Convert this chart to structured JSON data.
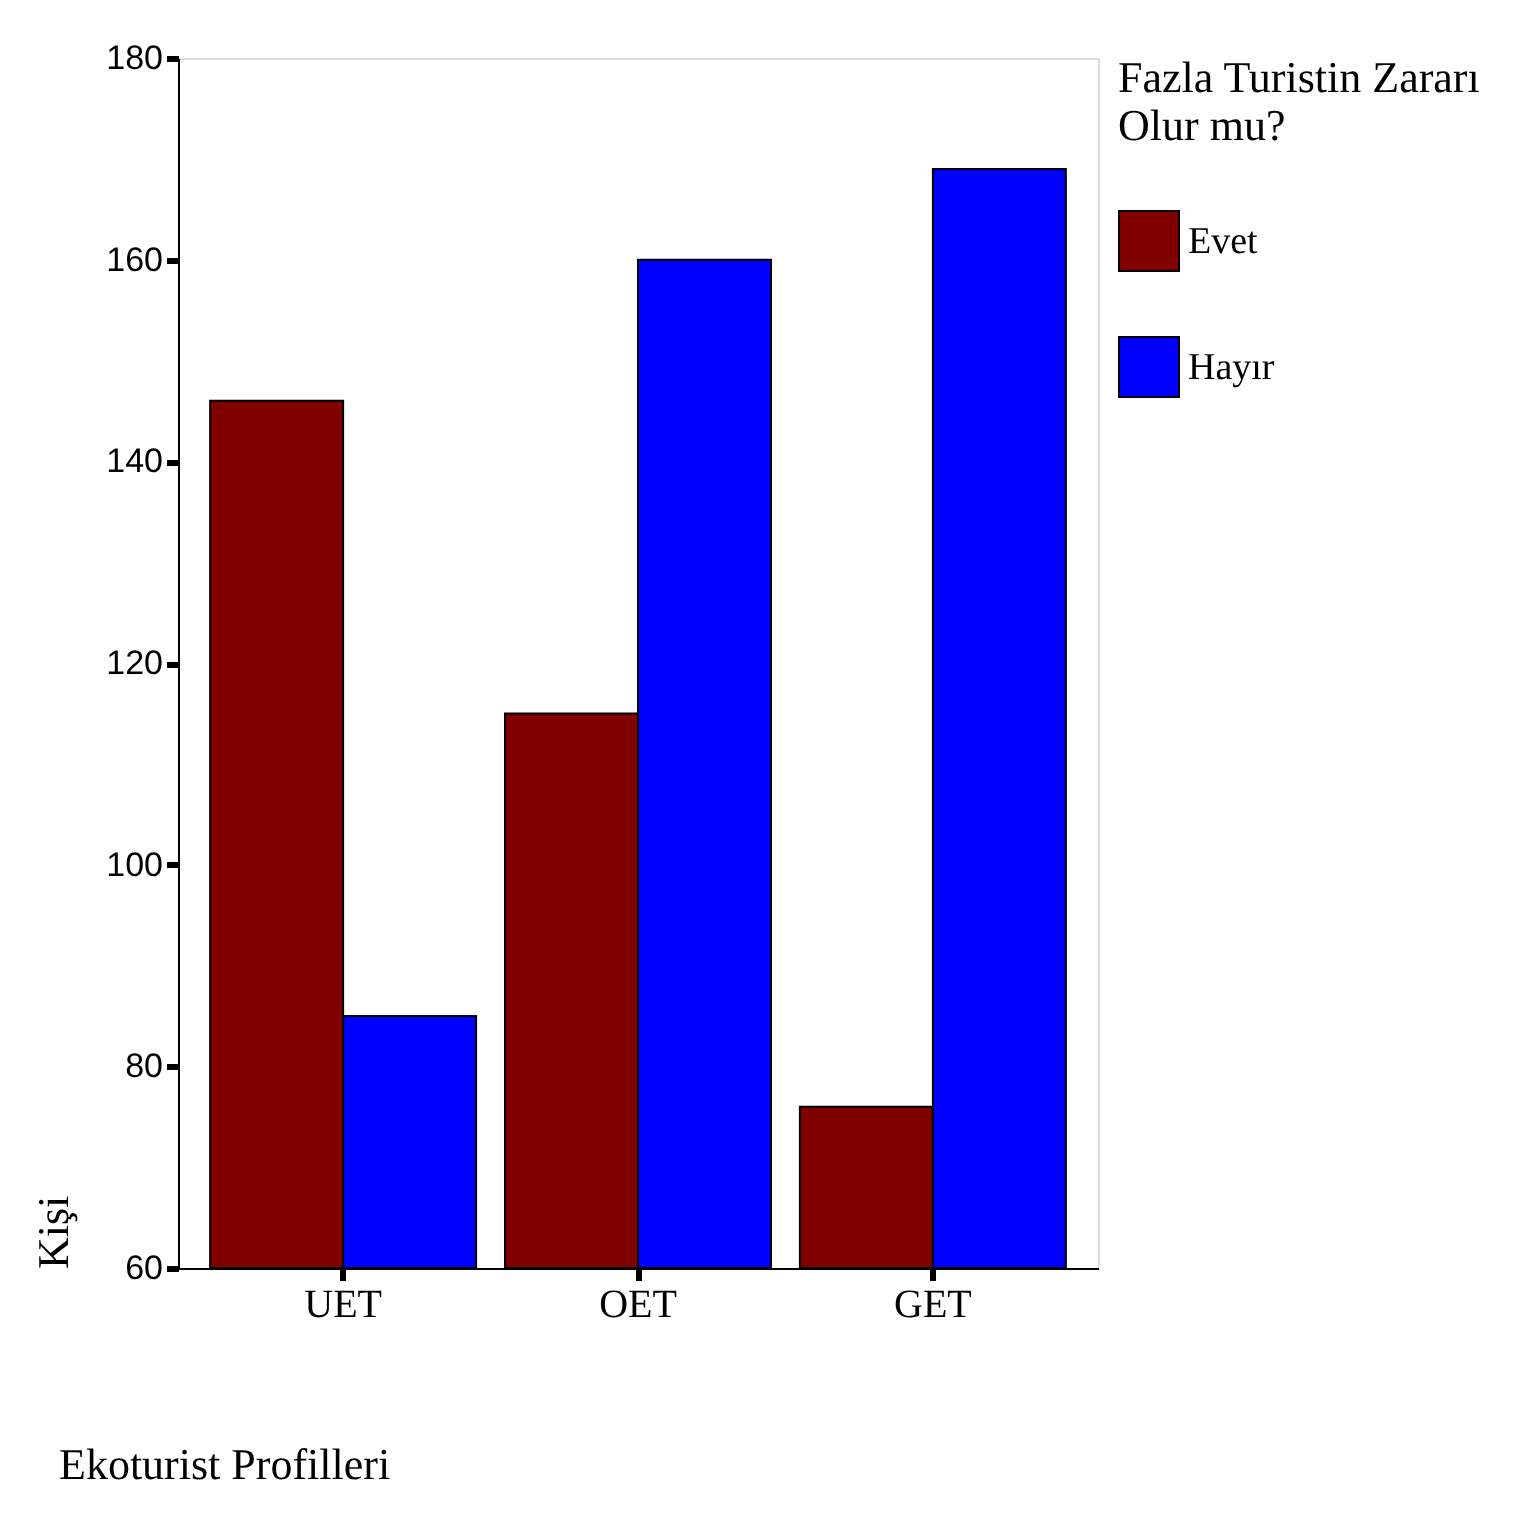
{
  "chart_data": {
    "type": "bar",
    "xlabel": "Ekoturist Profilleri",
    "ylabel": "Kişi",
    "legend_title": "Fazla Turistin Zararı Olur mu?",
    "categories": [
      "UET",
      "OET",
      "GET"
    ],
    "series": [
      {
        "name": "Evet",
        "color": "#800000",
        "values": [
          146,
          115,
          76
        ]
      },
      {
        "name": "Hayır",
        "color": "#0000ff",
        "values": [
          85,
          160,
          169
        ]
      }
    ],
    "ylim": [
      60,
      180
    ],
    "yticks": [
      60,
      80,
      100,
      120,
      140,
      160,
      180
    ],
    "grid": false,
    "legend": "right"
  }
}
